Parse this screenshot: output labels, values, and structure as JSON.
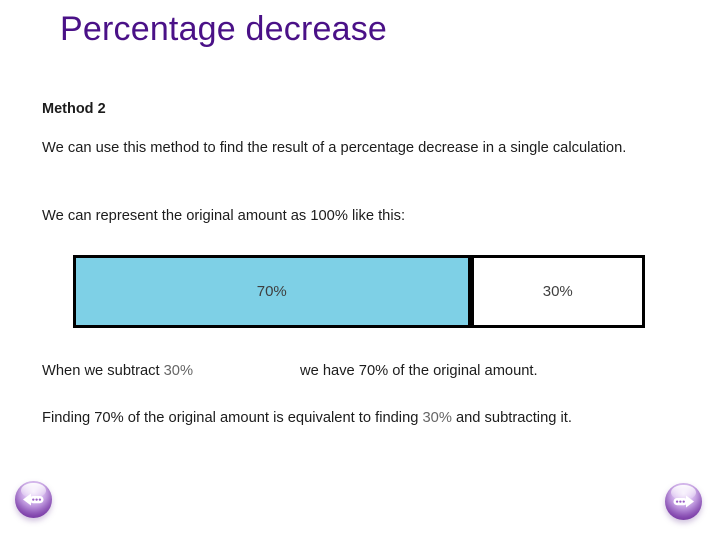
{
  "slide": {
    "title": "Percentage decrease",
    "method_heading": "Method 2",
    "intro_text": "We can use this method to find the result of a percentage decrease in a single calculation.",
    "represent_text": "We can represent the original amount as 100% like this:",
    "bar": {
      "left_label": "70%",
      "right_label": "30%",
      "left_width_percent": 69.5,
      "fill_color": "#7ed0e6",
      "border_color": "#000000"
    },
    "subtract_line": {
      "prefix": "When we subtract ",
      "subtract_value": "30%",
      "result_text": "we have 70% of the original amount."
    },
    "finding_line": {
      "part1": "Finding 70% of the original amount is equivalent to finding ",
      "highlight": "30%",
      "part2": " and subtracting it."
    },
    "nav": {
      "back_icon": "back-arrow-dots-icon",
      "forward_icon": "forward-arrow-dots-icon",
      "sphere_color": "#9a5fc6"
    },
    "colors": {
      "title_text": "#4a1187",
      "body_text": "#1c1c1c",
      "muted_number": "#666666",
      "bar_label": "#3f3f3f"
    }
  }
}
